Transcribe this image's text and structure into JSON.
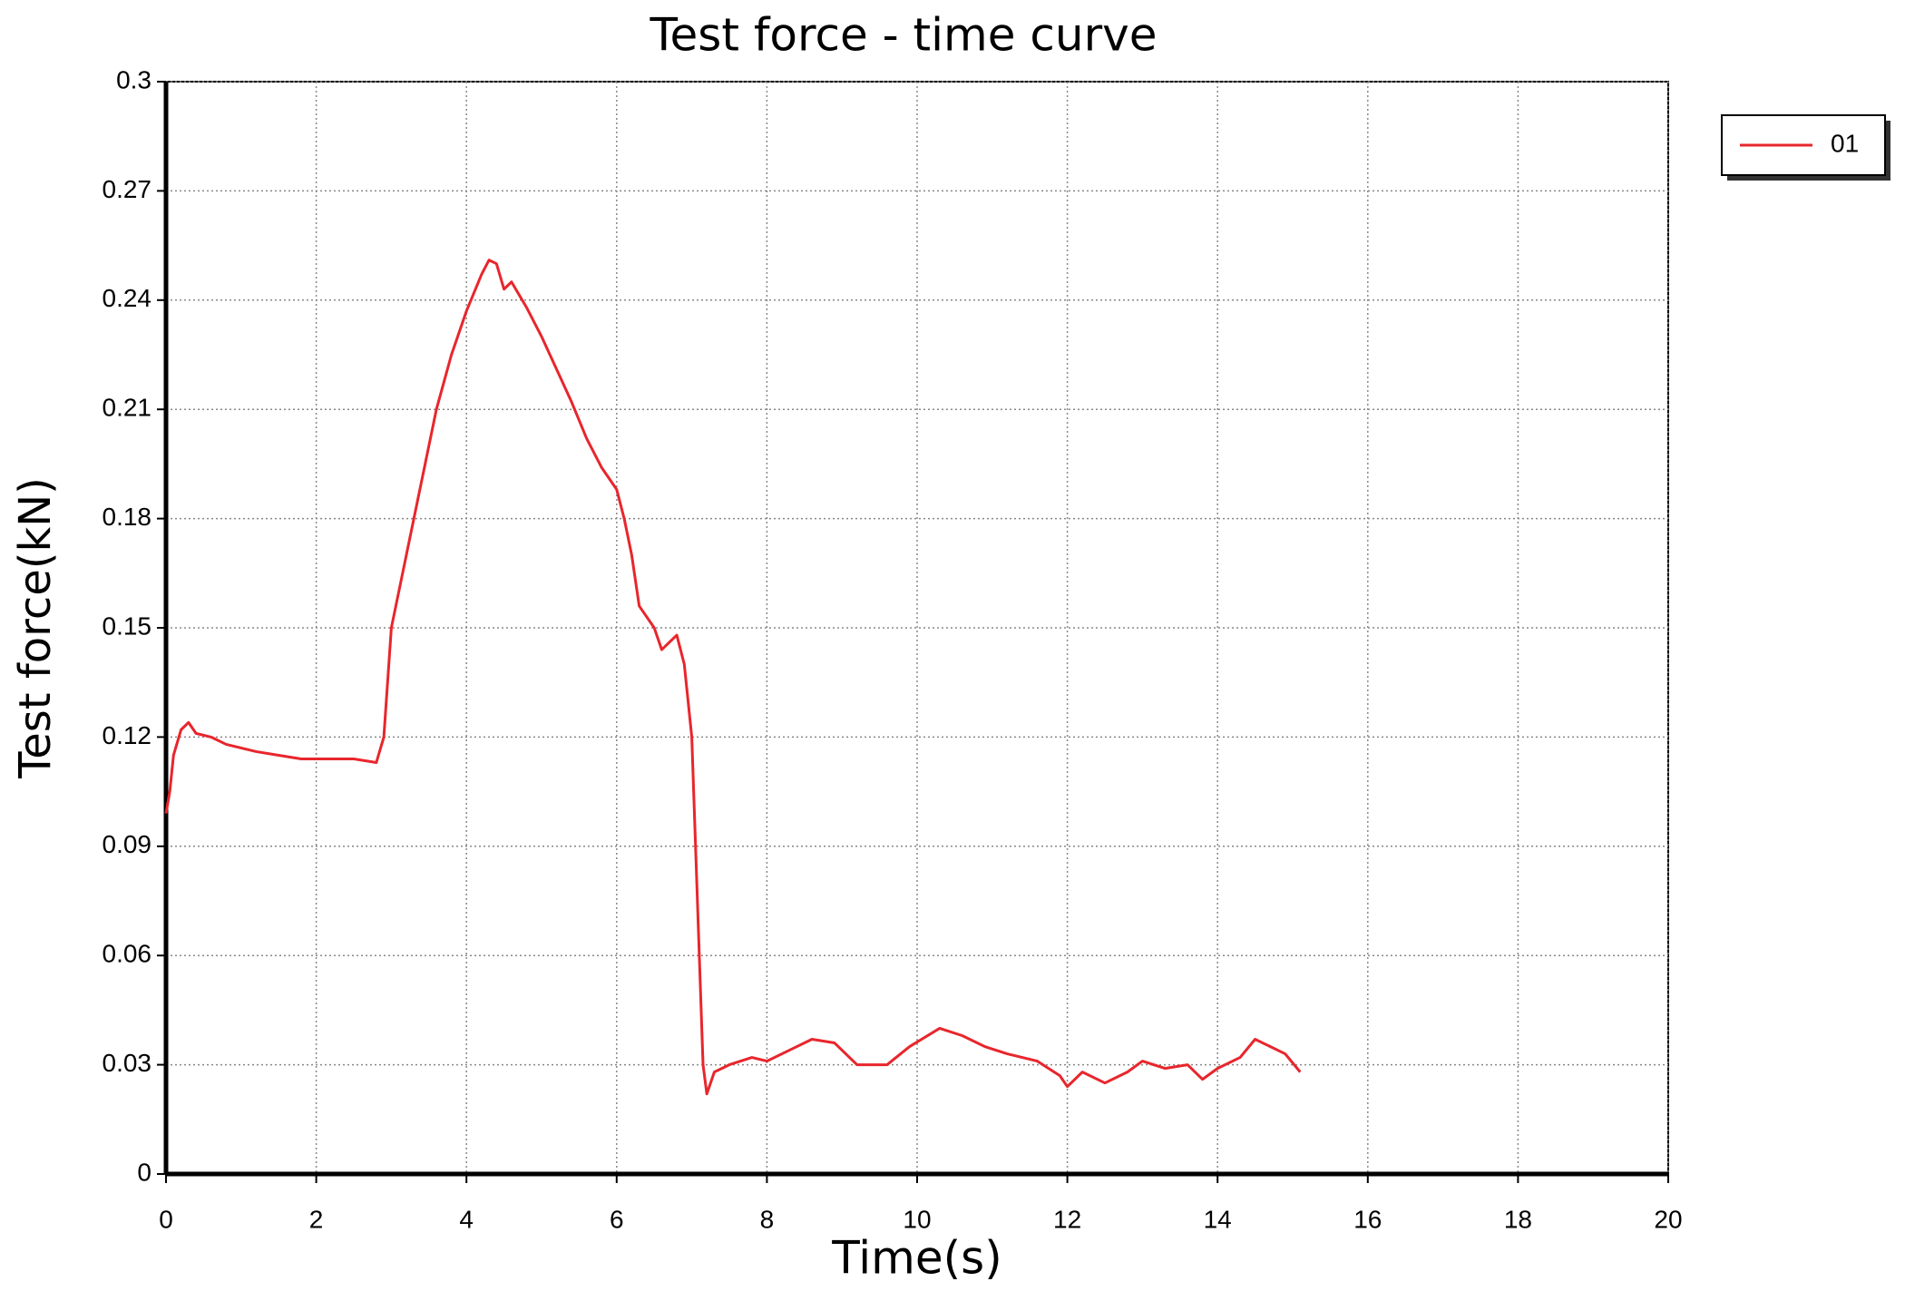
{
  "chart_data": {
    "type": "line",
    "title": "Test force - time curve",
    "x_label": "Time(s)",
    "y_label": "Test force(kN)",
    "xlim": [
      0,
      20
    ],
    "xticks": [
      0,
      2,
      4,
      6,
      8,
      10,
      12,
      14,
      16,
      18,
      20
    ],
    "ylim": [
      0,
      0.3
    ],
    "yticks": [
      0,
      0.03,
      0.06,
      0.09,
      0.12,
      0.15,
      0.18,
      0.21,
      0.24,
      0.27,
      0.3
    ],
    "grid": true,
    "legend": "upper right outside",
    "series": [
      {
        "name": "01",
        "color": "#e8262c",
        "x": [
          0,
          0.05,
          0.1,
          0.2,
          0.3,
          0.4,
          0.6,
          0.8,
          1.0,
          1.2,
          1.5,
          1.8,
          2.2,
          2.5,
          2.8,
          2.9,
          3.0,
          3.2,
          3.4,
          3.6,
          3.8,
          4.0,
          4.2,
          4.3,
          4.4,
          4.5,
          4.6,
          4.8,
          5.0,
          5.2,
          5.4,
          5.6,
          5.8,
          6.0,
          6.1,
          6.2,
          6.3,
          6.5,
          6.6,
          6.8,
          6.9,
          7.0,
          7.05,
          7.1,
          7.15,
          7.2,
          7.3,
          7.5,
          7.8,
          8.0,
          8.3,
          8.6,
          8.9,
          9.2,
          9.6,
          9.9,
          10.3,
          10.6,
          10.9,
          11.2,
          11.6,
          11.9,
          12.0,
          12.2,
          12.5,
          12.8,
          13.0,
          13.3,
          13.6,
          13.8,
          14.0,
          14.3,
          14.5,
          14.7,
          14.9,
          15.1
        ],
        "values": [
          0.099,
          0.105,
          0.115,
          0.122,
          0.124,
          0.121,
          0.12,
          0.118,
          0.117,
          0.116,
          0.115,
          0.114,
          0.114,
          0.114,
          0.113,
          0.12,
          0.15,
          0.17,
          0.19,
          0.21,
          0.225,
          0.237,
          0.247,
          0.251,
          0.25,
          0.243,
          0.245,
          0.238,
          0.23,
          0.221,
          0.212,
          0.202,
          0.194,
          0.188,
          0.18,
          0.17,
          0.156,
          0.15,
          0.144,
          0.148,
          0.14,
          0.12,
          0.09,
          0.06,
          0.03,
          0.022,
          0.028,
          0.03,
          0.032,
          0.031,
          0.034,
          0.037,
          0.036,
          0.03,
          0.03,
          0.035,
          0.04,
          0.038,
          0.035,
          0.033,
          0.031,
          0.027,
          0.024,
          0.028,
          0.025,
          0.028,
          0.031,
          0.029,
          0.03,
          0.026,
          0.029,
          0.032,
          0.037,
          0.035,
          0.033,
          0.028
        ]
      }
    ]
  }
}
